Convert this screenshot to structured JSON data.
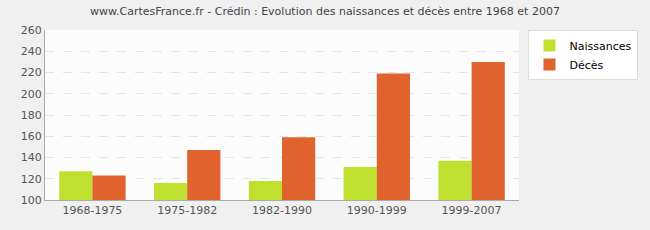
{
  "chart_data": {
    "type": "bar",
    "title": "www.CartesFrance.fr - Crédin : Evolution des naissances et décès entre 1968 et 2007",
    "categories": [
      "1968-1975",
      "1975-1982",
      "1982-1990",
      "1990-1999",
      "1999-2007"
    ],
    "series": [
      {
        "name": "Naissances",
        "color": "#bfe02e",
        "values": [
          127,
          116,
          118,
          131,
          137
        ]
      },
      {
        "name": "Décès",
        "color": "#e0632e",
        "values": [
          123,
          147,
          159,
          219,
          230
        ]
      }
    ],
    "ylim": [
      100,
      260
    ],
    "yticks": [
      100,
      120,
      140,
      160,
      180,
      200,
      220,
      240,
      260
    ],
    "grid": true,
    "legend": "top right"
  }
}
